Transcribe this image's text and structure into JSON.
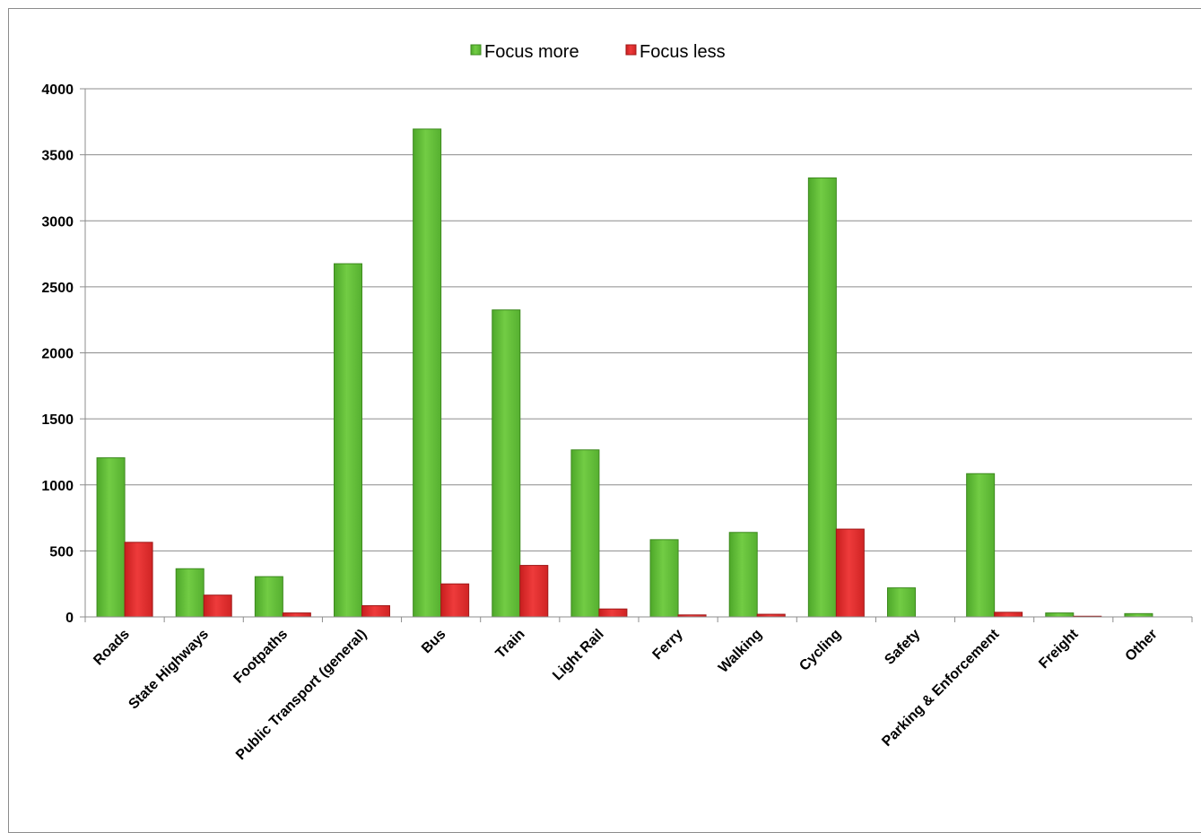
{
  "chart_data": {
    "type": "bar",
    "title": "",
    "xlabel": "",
    "ylabel": "",
    "ylim": [
      0,
      4000
    ],
    "y_ticks": [
      0,
      500,
      1000,
      1500,
      2000,
      2500,
      3000,
      3500,
      4000
    ],
    "grid": true,
    "legend_position": "top-center",
    "categories": [
      "Roads",
      "State Highways",
      "Footpaths",
      "Public Transport (general)",
      "Bus",
      "Train",
      "Light Rail",
      "Ferry",
      "Walking",
      "Cycling",
      "Safety",
      "Parking & Enforcement",
      "Freight",
      "Other"
    ],
    "series": [
      {
        "name": "Focus more",
        "color": "#66c43a",
        "values": [
          1205,
          365,
          305,
          2675,
          3695,
          2325,
          1265,
          585,
          640,
          3325,
          220,
          1085,
          30,
          25
        ]
      },
      {
        "name": "Focus less",
        "color": "#e83030",
        "values": [
          565,
          165,
          30,
          85,
          250,
          390,
          60,
          15,
          20,
          665,
          0,
          35,
          5,
          0
        ]
      }
    ]
  }
}
